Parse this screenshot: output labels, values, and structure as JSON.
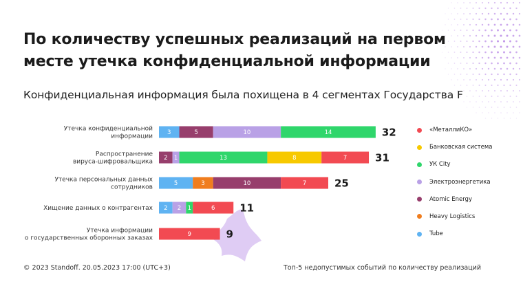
{
  "title": "По количеству успешных реализаций на первом месте утечка конфиденциальной информации",
  "subtitle": "Конфиденциальная информация была похищена в 4 сегментах Государства F",
  "footer": {
    "left": "© 2023 Standoff. 20.05.2023 17:00 (UTC+3)",
    "right": "Топ-5 недопустимых событий по количеству реализаций"
  },
  "legend": [
    {
      "name": "«МеталлиКО»",
      "color": "#f24a52"
    },
    {
      "name": "Банковская система",
      "color": "#f7c900"
    },
    {
      "name": "УК City",
      "color": "#2fd66b"
    },
    {
      "name": "Электроэнергетика",
      "color": "#b9a1e6"
    },
    {
      "name": "Atomic Energy",
      "color": "#973e6c"
    },
    {
      "name": "Heavy Logistics",
      "color": "#f07d1e"
    },
    {
      "name": "Tube",
      "color": "#5fb3f2"
    }
  ],
  "chart_data": {
    "type": "bar",
    "orientation": "horizontal",
    "stacked": true,
    "categories": [
      [
        "Утечка конфиденциальной",
        "информации"
      ],
      [
        "Распространение",
        "вируса-шифровальщика"
      ],
      [
        "Утечка персональных данных",
        "сотрудников"
      ],
      [
        "Хищение данных о контрагентах"
      ],
      [
        "Утечка информации",
        "о государственных оборонных заказах"
      ]
    ],
    "totals": [
      32,
      31,
      25,
      11,
      9
    ],
    "series": [
      {
        "name": "Tube",
        "color": "#5fb3f2",
        "values": [
          3,
          0,
          5,
          2,
          0
        ]
      },
      {
        "name": "Atomic Energy",
        "color": "#973e6c",
        "values": [
          5,
          2,
          0,
          0,
          0
        ]
      },
      {
        "name": "Электроэнергетика",
        "color": "#b9a1e6",
        "values": [
          10,
          1,
          0,
          2,
          0
        ]
      },
      {
        "name": "УК City",
        "color": "#2fd66b",
        "values": [
          14,
          13,
          0,
          1,
          0
        ]
      },
      {
        "name": "Банковская система",
        "color": "#f7c900",
        "values": [
          0,
          8,
          0,
          0,
          0
        ]
      },
      {
        "name": "Heavy Logistics",
        "color": "#f07d1e",
        "values": [
          0,
          0,
          3,
          0,
          0
        ]
      },
      {
        "name": "Atomic Energy",
        "color": "#973e6c",
        "values": [
          0,
          0,
          10,
          0,
          0
        ]
      },
      {
        "name": "«МеталлиКО»",
        "color": "#f24a52",
        "values": [
          0,
          7,
          7,
          6,
          9
        ]
      }
    ]
  }
}
